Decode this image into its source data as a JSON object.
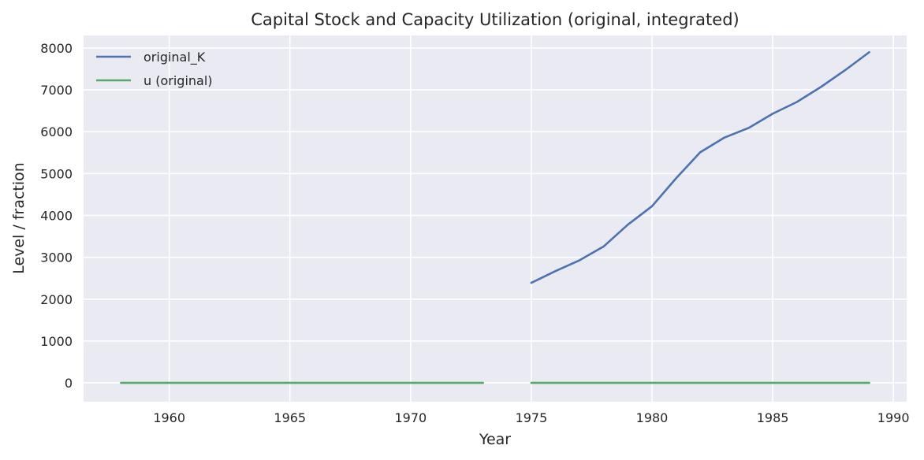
{
  "chart_data": {
    "type": "line",
    "title": "Capital Stock and Capacity Utilization (original, integrated)",
    "xlabel": "Year",
    "ylabel": "Level / fraction",
    "xlim": [
      1956.45,
      1990.55
    ],
    "ylim": [
      -450,
      8300
    ],
    "xticks": [
      1960,
      1965,
      1970,
      1975,
      1980,
      1985,
      1990
    ],
    "yticks": [
      0,
      1000,
      2000,
      3000,
      4000,
      5000,
      6000,
      7000,
      8000
    ],
    "grid": true,
    "legend_position": "top-left",
    "series": [
      {
        "name": "original_K",
        "color": "#4c72b0",
        "segments": [
          [
            [
              1975,
              2390
            ],
            [
              1976,
              2670
            ],
            [
              1977,
              2930
            ],
            [
              1978,
              3260
            ],
            [
              1979,
              3780
            ],
            [
              1980,
              4220
            ],
            [
              1981,
              4890
            ],
            [
              1982,
              5510
            ],
            [
              1983,
              5860
            ],
            [
              1984,
              6090
            ],
            [
              1985,
              6430
            ],
            [
              1986,
              6710
            ],
            [
              1987,
              7070
            ],
            [
              1988,
              7470
            ],
            [
              1989,
              7900
            ]
          ]
        ]
      },
      {
        "name": "u (original)",
        "color": "#55a868",
        "segments": [
          [
            [
              1958,
              0.8
            ],
            [
              1959,
              0.8
            ],
            [
              1960,
              0.8
            ],
            [
              1961,
              0.8
            ],
            [
              1962,
              0.8
            ],
            [
              1963,
              0.8
            ],
            [
              1964,
              0.8
            ],
            [
              1965,
              0.8
            ],
            [
              1966,
              0.8
            ],
            [
              1967,
              0.8
            ],
            [
              1968,
              0.8
            ],
            [
              1969,
              0.8
            ],
            [
              1970,
              0.8
            ],
            [
              1971,
              0.8
            ],
            [
              1972,
              0.8
            ],
            [
              1973,
              0.8
            ]
          ],
          [
            [
              1975,
              0.8
            ],
            [
              1976,
              0.8
            ],
            [
              1977,
              0.8
            ],
            [
              1978,
              0.8
            ],
            [
              1979,
              0.8
            ],
            [
              1980,
              0.8
            ],
            [
              1981,
              0.8
            ],
            [
              1982,
              0.8
            ],
            [
              1983,
              0.8
            ],
            [
              1984,
              0.8
            ],
            [
              1985,
              0.8
            ],
            [
              1986,
              0.8
            ],
            [
              1987,
              0.8
            ],
            [
              1988,
              0.8
            ],
            [
              1989,
              0.8
            ]
          ]
        ]
      }
    ]
  }
}
